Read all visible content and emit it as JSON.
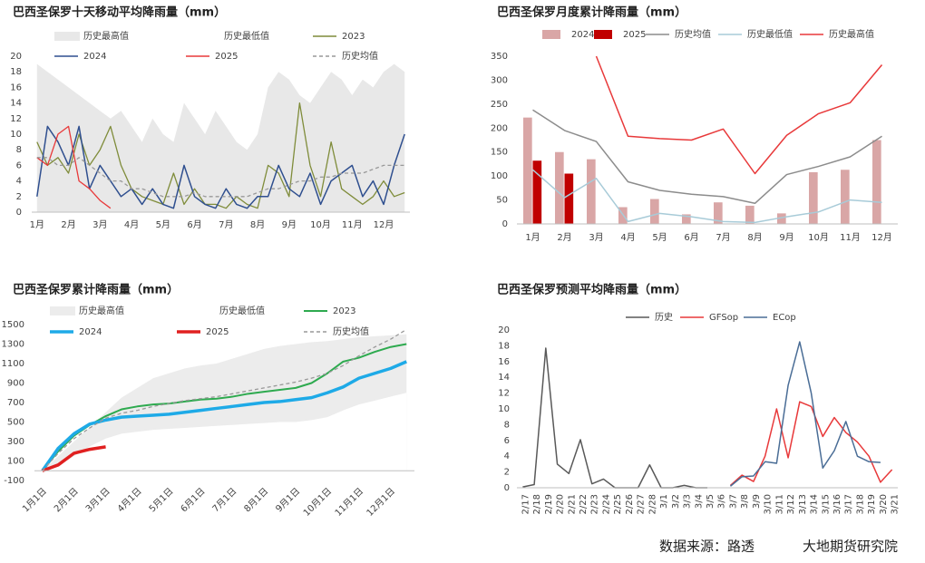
{
  "chart_data": [
    {
      "type": "line",
      "title": "巴西圣保罗十天移动平均降雨量（mm）",
      "categories": [
        "1月",
        null,
        null,
        "2月",
        null,
        null,
        "3月",
        null,
        null,
        "4月",
        null,
        null,
        "5月",
        null,
        null,
        "6月",
        null,
        null,
        "7月",
        null,
        null,
        "8月",
        null,
        null,
        "9月",
        null,
        null,
        "10月",
        null,
        null,
        "11月",
        null,
        null,
        "12月",
        null,
        null
      ],
      "ylim": [
        0,
        20
      ],
      "yticks": [
        0,
        2,
        4,
        6,
        8,
        10,
        12,
        14,
        16,
        18,
        20
      ],
      "series": [
        {
          "name": "历史最高值",
          "type": "area",
          "color": "#e8e8e8",
          "values": [
            19,
            18,
            17,
            16,
            15,
            14,
            13,
            12,
            13,
            11,
            9,
            12,
            10,
            9,
            14,
            12,
            10,
            13,
            11,
            9,
            8,
            10,
            16,
            18,
            17,
            15,
            14,
            16,
            18,
            17,
            15,
            17,
            16,
            18,
            19,
            18
          ]
        },
        {
          "name": "历史最低值",
          "type": "area",
          "color": "#ffffff",
          "values": [
            0,
            0,
            0,
            0,
            0,
            0,
            0,
            0,
            0,
            0,
            0,
            0,
            0,
            0,
            0,
            0,
            0,
            0,
            0,
            0,
            0,
            0,
            0,
            0,
            0,
            0,
            0,
            0,
            0,
            0,
            0,
            0,
            0,
            0,
            0,
            0
          ]
        },
        {
          "name": "2023",
          "type": "line",
          "color": "#7f8c3a",
          "values": [
            9,
            6,
            7,
            5,
            10,
            6,
            8,
            11,
            6,
            3,
            2,
            1.5,
            1,
            5,
            1,
            3,
            1,
            1,
            0.5,
            2,
            1,
            0.5,
            6,
            5,
            2,
            14,
            6,
            2,
            9,
            3,
            2,
            1,
            2,
            4,
            2,
            2.5
          ]
        },
        {
          "name": "2024",
          "type": "line",
          "color": "#2f4f8f",
          "values": [
            2,
            11,
            9,
            6,
            11,
            3,
            6,
            4,
            2,
            3,
            1,
            3,
            1,
            0.5,
            6,
            2,
            1,
            0.5,
            3,
            1,
            0.5,
            2,
            2,
            6,
            3,
            2,
            5,
            1,
            4,
            5,
            6,
            2,
            4,
            1,
            6,
            10
          ]
        },
        {
          "name": "2025",
          "type": "line",
          "color": "#e8393a",
          "values": [
            7,
            6,
            10,
            11,
            4,
            3,
            1.5,
            0.5,
            null,
            null,
            null,
            null,
            null,
            null,
            null,
            null,
            null,
            null,
            null,
            null,
            null,
            null,
            null,
            null,
            null,
            null,
            null,
            null,
            null,
            null,
            null,
            null,
            null,
            null,
            null,
            null
          ]
        },
        {
          "name": "历史均值",
          "type": "line",
          "dashed": true,
          "color": "#999999",
          "values": [
            7,
            7,
            6,
            6,
            7,
            6,
            5,
            4,
            4,
            3,
            3,
            2.5,
            2,
            2,
            2,
            2.5,
            2,
            2,
            2,
            2,
            2,
            2.5,
            3,
            3,
            3.5,
            4,
            4,
            4.5,
            4.5,
            5,
            5,
            5,
            5.5,
            6,
            6,
            6
          ]
        }
      ]
    },
    {
      "type": "combo",
      "title": "巴西圣保罗月度累计降雨量（mm）",
      "categories": [
        "1月",
        "2月",
        "3月",
        "4月",
        "5月",
        "6月",
        "7月",
        "8月",
        "9月",
        "10月",
        "11月",
        "12月"
      ],
      "ylim": [
        0,
        350
      ],
      "yticks": [
        0,
        50,
        100,
        150,
        200,
        250,
        300,
        350
      ],
      "series": [
        {
          "name": "2024",
          "type": "bar",
          "color": "#d9a6a6",
          "values": [
            222,
            150,
            135,
            35,
            52,
            20,
            45,
            38,
            22,
            108,
            113,
            175
          ]
        },
        {
          "name": "2025",
          "type": "bar",
          "color": "#c00000",
          "values": [
            132,
            105,
            null,
            null,
            null,
            null,
            null,
            null,
            null,
            null,
            null,
            null
          ]
        },
        {
          "name": "历史均值",
          "type": "line",
          "color": "#8c8c8c",
          "values": [
            238,
            195,
            172,
            88,
            70,
            62,
            57,
            43,
            103,
            120,
            140,
            183
          ]
        },
        {
          "name": "历史最低值",
          "type": "line",
          "color": "#a8cbd8",
          "values": [
            113,
            55,
            95,
            5,
            22,
            15,
            5,
            3,
            15,
            25,
            50,
            45
          ]
        },
        {
          "name": "历史最高值",
          "type": "line",
          "color": "#e8393a",
          "values": [
            null,
            null,
            350,
            183,
            178,
            175,
            198,
            105,
            185,
            230,
            253,
            332
          ]
        }
      ]
    },
    {
      "type": "line",
      "title": "巴西圣保罗累计降雨量（mm）",
      "categories": [
        "1月1日",
        null,
        "2月1日",
        null,
        "3月1日",
        null,
        "4月1日",
        null,
        "5月1日",
        null,
        "6月1日",
        null,
        "7月1日",
        null,
        "8月1日",
        null,
        "9月1日",
        null,
        "10月1日",
        null,
        "11月1日",
        null,
        "12月1日",
        null
      ],
      "ylim": [
        -100,
        1500
      ],
      "yticks": [
        -100,
        100,
        300,
        500,
        700,
        900,
        1100,
        1300,
        1500
      ],
      "series": [
        {
          "name": "历史最高值",
          "type": "area",
          "color": "#ececec",
          "values": [
            0,
            150,
            300,
            450,
            600,
            750,
            850,
            950,
            1000,
            1050,
            1080,
            1100,
            1150,
            1200,
            1250,
            1280,
            1300,
            1320,
            1330,
            1350,
            1370,
            1380,
            1390,
            1400
          ]
        },
        {
          "name": "历史最低值",
          "type": "area",
          "color": "#ffffff",
          "values": [
            0,
            50,
            150,
            250,
            330,
            380,
            400,
            420,
            430,
            440,
            450,
            460,
            470,
            480,
            490,
            500,
            500,
            520,
            550,
            620,
            680,
            720,
            760,
            800
          ]
        },
        {
          "name": "2023",
          "type": "line",
          "color": "#2eaa4f",
          "values": [
            0,
            200,
            360,
            470,
            560,
            630,
            660,
            680,
            690,
            710,
            730,
            740,
            760,
            790,
            810,
            830,
            850,
            900,
            1000,
            1120,
            1160,
            1220,
            1270,
            1300
          ]
        },
        {
          "name": "2024",
          "type": "line",
          "color": "#1eaae7",
          "values": [
            0,
            230,
            380,
            480,
            520,
            550,
            560,
            570,
            580,
            600,
            620,
            640,
            660,
            680,
            700,
            710,
            730,
            750,
            800,
            860,
            950,
            1000,
            1050,
            1120
          ]
        },
        {
          "name": "2025",
          "type": "line",
          "color": "#e02020",
          "values": [
            0,
            60,
            180,
            220,
            245,
            null,
            null,
            null,
            null,
            null,
            null,
            null,
            null,
            null,
            null,
            null,
            null,
            null,
            null,
            null,
            null,
            null,
            null,
            null
          ]
        },
        {
          "name": "历史均值",
          "type": "line",
          "dashed": true,
          "color": "#999999",
          "values": [
            0,
            180,
            330,
            440,
            540,
            590,
            620,
            660,
            690,
            720,
            740,
            760,
            790,
            820,
            850,
            880,
            910,
            950,
            1000,
            1080,
            1180,
            1270,
            1350,
            1450
          ]
        }
      ]
    },
    {
      "type": "line",
      "title": "巴西圣保罗预测平均降雨量（mm）",
      "categories": [
        "2/17",
        "2/18",
        "2/19",
        "2/20",
        "2/21",
        "2/22",
        "2/23",
        "2/24",
        "2/25",
        "2/26",
        "2/27",
        "2/28",
        "3/1",
        "3/2",
        "3/3",
        "3/4",
        "3/5",
        "3/6",
        "3/7",
        "3/8",
        "3/9",
        "3/10",
        "3/11",
        "3/12",
        "3/13",
        "3/14",
        "3/15",
        "3/16",
        "3/17",
        "3/18",
        "3/19",
        "3/20",
        "3/21"
      ],
      "ylim": [
        0,
        20
      ],
      "yticks": [
        0,
        2,
        4,
        6,
        8,
        10,
        12,
        14,
        16,
        18,
        20
      ],
      "series": [
        {
          "name": "历史",
          "type": "line",
          "color": "#595959",
          "values": [
            0.1,
            0.4,
            17.7,
            3,
            1.8,
            6.1,
            0.5,
            1.1,
            0,
            0,
            0,
            2.9,
            0,
            0,
            0.3,
            0,
            0,
            null,
            null,
            null,
            null,
            null,
            null,
            null,
            null,
            null,
            null,
            null,
            null,
            null,
            null,
            null,
            null
          ]
        },
        {
          "name": "GFSop",
          "type": "line",
          "color": "#e8393a",
          "values": [
            null,
            null,
            null,
            null,
            null,
            null,
            null,
            null,
            null,
            null,
            null,
            null,
            null,
            null,
            null,
            null,
            null,
            null,
            0.3,
            1.6,
            0.8,
            4,
            10,
            3.8,
            10.9,
            10.3,
            6.5,
            8.9,
            7,
            5.8,
            4,
            0.7,
            2.3
          ]
        },
        {
          "name": "ECop",
          "type": "line",
          "color": "#4a6d96",
          "values": [
            null,
            null,
            null,
            null,
            null,
            null,
            null,
            null,
            null,
            null,
            null,
            null,
            null,
            null,
            null,
            null,
            null,
            null,
            0.2,
            1.4,
            1.5,
            3.3,
            3.1,
            13,
            18.5,
            12,
            2.5,
            4.7,
            8.4,
            4,
            3.3,
            3.2,
            null
          ]
        }
      ]
    }
  ],
  "footer": {
    "source": "数据来源：路透",
    "org": "大地期货研究院"
  }
}
